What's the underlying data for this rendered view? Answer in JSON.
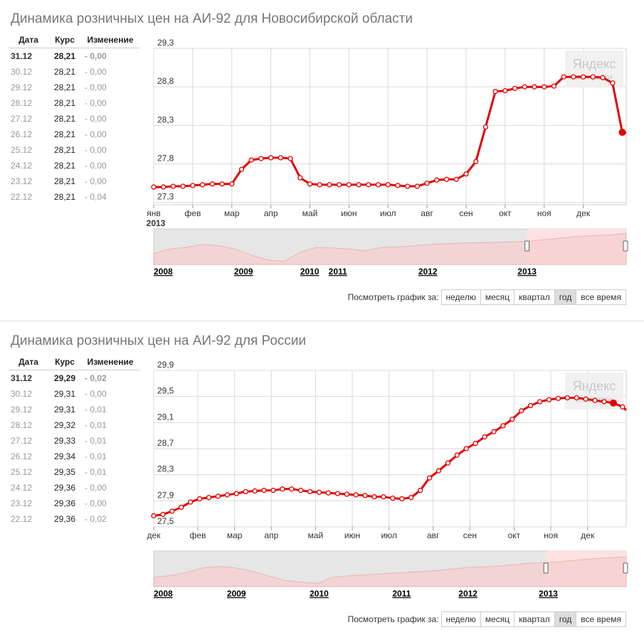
{
  "table_headers": {
    "date": "Дата",
    "rate": "Курс",
    "change": "Изменение"
  },
  "period_label": "Посмотреть график за:",
  "period_buttons": [
    "неделю",
    "месяц",
    "квартал",
    "год",
    "все время"
  ],
  "active_period": "год",
  "watermark": {
    "brand": "Яндекс",
    "sub": "котировки"
  },
  "colors": {
    "line": "#e30000",
    "nav_fill": "#f7d0d0",
    "nav_selected": "#fde2e2",
    "nav_unselected": "#e6e6e6",
    "grid": "#d9d9d9"
  },
  "panels": [
    {
      "title": "Динамика розничных цен на АИ-92 для Новосибирской области",
      "rows": [
        {
          "date": "31.12",
          "rate": "28,21",
          "change": "- 0,00"
        },
        {
          "date": "30.12",
          "rate": "28,21",
          "change": "- 0,00"
        },
        {
          "date": "29.12",
          "rate": "28,21",
          "change": "- 0,00"
        },
        {
          "date": "28.12",
          "rate": "28,21",
          "change": "- 0,00"
        },
        {
          "date": "27.12",
          "rate": "28,21",
          "change": "- 0,00"
        },
        {
          "date": "26.12",
          "rate": "28,21",
          "change": "- 0,00"
        },
        {
          "date": "25.12",
          "rate": "28,21",
          "change": "- 0,00"
        },
        {
          "date": "24.12",
          "rate": "28,21",
          "change": "- 0,00"
        },
        {
          "date": "23.12",
          "rate": "28,21",
          "change": "- 0,00"
        },
        {
          "date": "22.12",
          "rate": "28,21",
          "change": "- 0,04"
        }
      ],
      "chart_data": {
        "type": "line",
        "title": "",
        "y_ticks": [
          "29,3",
          "28,8",
          "28,3",
          "27,8",
          "27,3"
        ],
        "y_tick_values": [
          29.3,
          28.8,
          28.3,
          27.8,
          27.3
        ],
        "ylim": [
          27.27,
          29.3
        ],
        "x_ticks": [
          "янв",
          "фев",
          "мар",
          "апр",
          "май",
          "июн",
          "июл",
          "авг",
          "сен",
          "окт",
          "ноя",
          "дек"
        ],
        "x_tick_values": [
          0,
          1,
          2,
          3,
          4,
          5,
          6,
          7,
          8,
          9,
          10,
          11
        ],
        "x_extra_label": "2013",
        "xlim": [
          0,
          12.1
        ],
        "grid": true,
        "series": [
          {
            "x": [
              0,
              0.25,
              0.5,
              0.75,
              1.0,
              1.25,
              1.5,
              1.75,
              2.0,
              2.25,
              2.5,
              2.75,
              3.0,
              3.25,
              3.5,
              3.75,
              4.0,
              4.25,
              4.5,
              4.75,
              5.0,
              5.25,
              5.5,
              5.75,
              6.0,
              6.25,
              6.5,
              6.75,
              7.0,
              7.25,
              7.5,
              7.75,
              8.0,
              8.25,
              8.5,
              8.75,
              9.0,
              9.25,
              9.5,
              9.75,
              10.0,
              10.25,
              10.5,
              10.75,
              11.0,
              11.25,
              11.5,
              11.75
            ],
            "values": [
              27.5,
              27.5,
              27.51,
              27.51,
              27.52,
              27.53,
              27.54,
              27.54,
              27.54,
              27.73,
              27.85,
              27.87,
              27.88,
              27.88,
              27.87,
              27.62,
              27.54,
              27.53,
              27.53,
              27.53,
              27.53,
              27.53,
              27.53,
              27.53,
              27.53,
              27.52,
              27.51,
              27.51,
              27.55,
              27.59,
              27.6,
              27.6,
              27.67,
              27.83,
              28.28,
              28.74,
              28.75,
              28.78,
              28.8,
              28.8,
              28.8,
              28.81,
              28.93,
              28.93,
              28.93,
              28.93,
              28.92,
              28.85
            ],
            "tail": {
              "x": [
                11.75,
                12.0,
                12.1
              ],
              "values": [
                28.85,
                28.21,
                28.2
              ]
            },
            "last_marker_x": 12.0
          }
        ]
      },
      "navigator": {
        "labels": [
          {
            "text": "2008",
            "pos": 0
          },
          {
            "text": "2009",
            "pos": 0.17
          },
          {
            "text": "2010",
            "pos": 0.31
          },
          {
            "text": "2011",
            "pos": 0.37
          },
          {
            "text": "2012",
            "pos": 0.56
          },
          {
            "text": "2013",
            "pos": 0.77
          }
        ],
        "selection_start": 0.79,
        "profile": [
          0.3,
          0.45,
          0.5,
          0.6,
          0.55,
          0.45,
          0.25,
          0.1,
          0.05,
          0.35,
          0.5,
          0.48,
          0.45,
          0.4,
          0.5,
          0.52,
          0.55,
          0.6,
          0.62,
          0.64,
          0.65,
          0.66,
          0.68,
          0.7,
          0.75,
          0.8,
          0.85,
          0.88,
          0.9,
          0.95
        ]
      }
    },
    {
      "title": "Динамика розничных цен на АИ-92 для России",
      "rows": [
        {
          "date": "31.12",
          "rate": "29,29",
          "change": "- 0,02"
        },
        {
          "date": "30.12",
          "rate": "29,31",
          "change": "- 0,00"
        },
        {
          "date": "29.12",
          "rate": "29,31",
          "change": "- 0,01"
        },
        {
          "date": "28.12",
          "rate": "29,32",
          "change": "- 0,01"
        },
        {
          "date": "27.12",
          "rate": "29,33",
          "change": "- 0,01"
        },
        {
          "date": "26.12",
          "rate": "29,34",
          "change": "- 0,01"
        },
        {
          "date": "25.12",
          "rate": "29,35",
          "change": "- 0,01"
        },
        {
          "date": "24.12",
          "rate": "29,36",
          "change": "- 0,00"
        },
        {
          "date": "23.12",
          "rate": "29,36",
          "change": "- 0,00"
        },
        {
          "date": "22.12",
          "rate": "29,36",
          "change": "- 0,02"
        }
      ],
      "chart_data": {
        "type": "line",
        "title": "",
        "y_ticks": [
          "29,9",
          "29,5",
          "29,1",
          "28,7",
          "28,3",
          "27,9",
          "27,5"
        ],
        "y_tick_values": [
          29.9,
          29.5,
          29.1,
          28.7,
          28.3,
          27.9,
          27.5
        ],
        "ylim": [
          27.5,
          29.9
        ],
        "x_ticks": [
          "дек",
          "фев",
          "мар",
          "апр",
          "май",
          "июн",
          "июл",
          "авг",
          "сен",
          "окт",
          "ноя",
          "дек"
        ],
        "x_tick_values": [
          0,
          1.2,
          2.2,
          3.2,
          4.4,
          5.4,
          6.4,
          7.6,
          8.6,
          9.8,
          10.8,
          11.8
        ],
        "xlim": [
          0,
          12.85
        ],
        "grid": true,
        "series": [
          {
            "x": [
              0,
              0.25,
              0.5,
              0.75,
              1.0,
              1.25,
              1.5,
              1.75,
              2.0,
              2.25,
              2.5,
              2.75,
              3.0,
              3.25,
              3.5,
              3.75,
              4.0,
              4.25,
              4.5,
              4.75,
              5.0,
              5.25,
              5.5,
              5.75,
              6.0,
              6.25,
              6.5,
              6.75,
              7.0,
              7.25,
              7.5,
              7.75,
              8.0,
              8.25,
              8.5,
              8.75,
              9.0,
              9.25,
              9.5,
              9.75,
              10.0,
              10.25,
              10.5,
              10.75,
              11.0,
              11.25,
              11.5,
              11.75,
              12.0,
              12.25,
              12.5,
              12.75
            ],
            "values": [
              27.67,
              27.69,
              27.74,
              27.8,
              27.88,
              27.93,
              27.95,
              27.97,
              27.99,
              28.01,
              28.04,
              28.05,
              28.06,
              28.06,
              28.08,
              28.08,
              28.06,
              28.04,
              28.03,
              28.02,
              28.01,
              28.0,
              27.99,
              27.98,
              27.96,
              27.96,
              27.94,
              27.93,
              27.95,
              28.06,
              28.25,
              28.36,
              28.48,
              28.6,
              28.7,
              28.78,
              28.88,
              28.96,
              29.05,
              29.15,
              29.28,
              29.36,
              29.42,
              29.45,
              29.47,
              29.48,
              29.48,
              29.46,
              29.44,
              29.42,
              29.4,
              29.34
            ],
            "tail": {
              "x": [
                12.75,
                12.85
              ],
              "values": [
                29.34,
                29.29
              ]
            },
            "last_marker_x": 12.5
          }
        ]
      },
      "navigator": {
        "labels": [
          {
            "text": "2008",
            "pos": 0
          },
          {
            "text": "2009",
            "pos": 0.155
          },
          {
            "text": "2010",
            "pos": 0.33
          },
          {
            "text": "2011",
            "pos": 0.505
          },
          {
            "text": "2012",
            "pos": 0.645
          },
          {
            "text": "2013",
            "pos": 0.815
          }
        ],
        "selection_start": 0.83,
        "profile": [
          0.25,
          0.3,
          0.4,
          0.55,
          0.6,
          0.55,
          0.45,
          0.3,
          0.15,
          0.1,
          0.05,
          0.25,
          0.3,
          0.33,
          0.36,
          0.4,
          0.42,
          0.45,
          0.5,
          0.55,
          0.58,
          0.6,
          0.65,
          0.7,
          0.72,
          0.75,
          0.8,
          0.85,
          0.88,
          0.9
        ]
      }
    }
  ]
}
